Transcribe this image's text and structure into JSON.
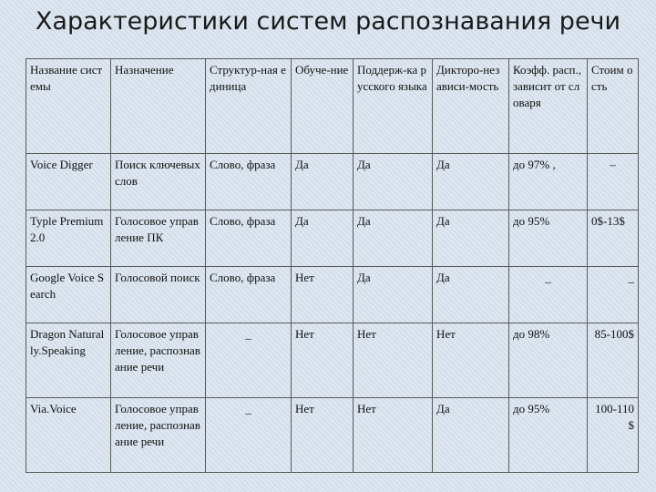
{
  "title": "Характеристики систем распознавания речи",
  "headers": [
    "Название системы",
    "Назначение",
    "Структур-ная единица",
    "Обуче-ние",
    "Поддерж-ка русского языка",
    "Дикторо-независи-мость",
    "Коэфф. расп., зависит от словаря",
    "Стоим ость"
  ],
  "rows": [
    {
      "name": "Voice Digger",
      "purpose": "Поиск ключевых слов",
      "unit": "Слово, фраза",
      "training": "Да",
      "russian": "Да",
      "speaker_indep": "Да",
      "accuracy": "до 97% ,",
      "cost": "–"
    },
    {
      "name": "Typle Premium 2.0",
      "purpose": "Голосовое управление ПК",
      "unit": "Слово, фраза",
      "training": "Да",
      "russian": "Да",
      "speaker_indep": "Да",
      "accuracy": "до 95%",
      "cost": "0$-13$"
    },
    {
      "name": "Google Voice Search",
      "purpose": "Голосовой поиск",
      "unit": "Слово, фраза",
      "training": "Нет",
      "russian": "Да",
      "speaker_indep": "Да",
      "accuracy": "_",
      "cost": "_"
    },
    {
      "name": "Dragon Naturally.Speaking",
      "purpose": "Голосовое управление, распознавание речи",
      "unit": "_",
      "training": "Нет",
      "russian": "Нет",
      "speaker_indep": "Нет",
      "accuracy": "до 98%",
      "cost": "85-100$"
    },
    {
      "name": "Via.Voice",
      "purpose": "Голосовое управление, распознавание речи",
      "unit": "_",
      "training": "Нет",
      "russian": "Нет",
      "speaker_indep": "Да",
      "accuracy": "до 95%",
      "cost": "100-110$"
    }
  ]
}
